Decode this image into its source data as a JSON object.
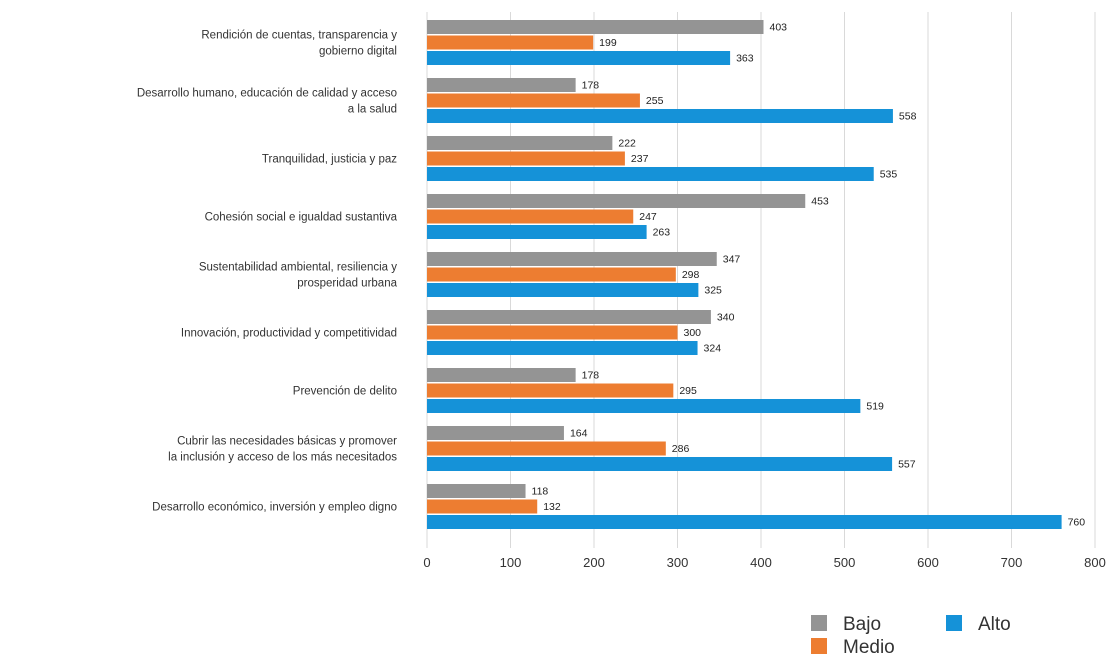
{
  "chart_data": {
    "type": "bar",
    "orientation": "horizontal",
    "categories": [
      [
        "Rendición de cuentas, transparencia y",
        "gobierno digital"
      ],
      [
        "Desarrollo humano, educación de calidad y acceso",
        "a la salud"
      ],
      [
        "Tranquilidad, justicia y paz"
      ],
      [
        "Cohesión social e igualdad sustantiva"
      ],
      [
        "Sustentabilidad ambiental, resiliencia y",
        "prosperidad urbana"
      ],
      [
        "Innovación, productividad y competitividad"
      ],
      [
        "Prevención de delito"
      ],
      [
        "Cubrir las necesidades básicas y promover",
        "la inclusión y acceso de los más necesitados"
      ],
      [
        "Desarrollo económico, inversión y empleo digno"
      ]
    ],
    "series": [
      {
        "name": "Bajo",
        "color": "#949494",
        "values": [
          403,
          178,
          222,
          453,
          347,
          340,
          178,
          164,
          118
        ]
      },
      {
        "name": "Medio",
        "color": "#ED7D31",
        "values": [
          199,
          255,
          237,
          247,
          298,
          300,
          295,
          286,
          132
        ]
      },
      {
        "name": "Alto",
        "color": "#1592D8",
        "values": [
          363,
          558,
          535,
          263,
          325,
          324,
          519,
          557,
          760
        ]
      }
    ],
    "xlim": [
      0,
      800
    ],
    "xticks": [
      0,
      100,
      200,
      300,
      400,
      500,
      600,
      700,
      800
    ],
    "grid": true,
    "legend_position": "bottom-right",
    "title": "",
    "xlabel": "",
    "ylabel": ""
  }
}
